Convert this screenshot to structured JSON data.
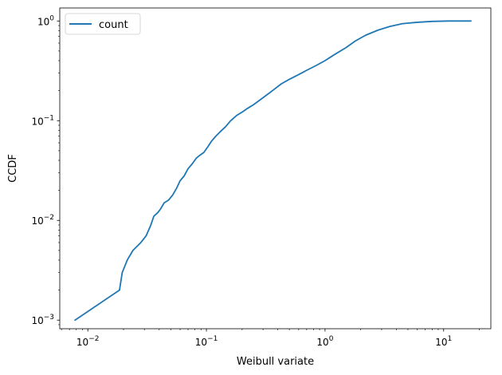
{
  "chart_data": {
    "type": "line",
    "xlabel": "Weibull variate",
    "ylabel": "CCDF",
    "xscale": "log",
    "yscale": "log",
    "xlim": [
      0.0058,
      25
    ],
    "ylim": [
      0.00082,
      1.35
    ],
    "grid": false,
    "legend_position": "top-left",
    "x_ticks": [
      {
        "value": 0.01,
        "base": "10",
        "exp": "−2"
      },
      {
        "value": 0.1,
        "base": "10",
        "exp": "−1"
      },
      {
        "value": 1,
        "base": "10",
        "exp": "0"
      },
      {
        "value": 10,
        "base": "10",
        "exp": "1"
      }
    ],
    "y_ticks": [
      {
        "value": 0.001,
        "base": "10",
        "exp": "−3"
      },
      {
        "value": 0.01,
        "base": "10",
        "exp": "−2"
      },
      {
        "value": 0.1,
        "base": "10",
        "exp": "−1"
      },
      {
        "value": 1,
        "base": "10",
        "exp": "0"
      }
    ],
    "series": [
      {
        "name": "count",
        "color": "#1f77b4",
        "x": [
          0.0078,
          0.0185,
          0.0195,
          0.0215,
          0.024,
          0.028,
          0.031,
          0.034,
          0.036,
          0.039,
          0.041,
          0.044,
          0.048,
          0.052,
          0.056,
          0.06,
          0.065,
          0.07,
          0.076,
          0.082,
          0.088,
          0.095,
          0.103,
          0.11,
          0.12,
          0.13,
          0.145,
          0.16,
          0.18,
          0.2,
          0.22,
          0.25,
          0.28,
          0.32,
          0.37,
          0.43,
          0.5,
          0.6,
          0.7,
          0.85,
          1.0,
          1.2,
          1.5,
          1.8,
          2.2,
          2.8,
          3.5,
          4.5,
          6.0,
          8.0,
          11.0,
          17.0
        ],
        "y": [
          0.001,
          0.002,
          0.003,
          0.004,
          0.005,
          0.006,
          0.007,
          0.009,
          0.011,
          0.012,
          0.013,
          0.015,
          0.016,
          0.018,
          0.021,
          0.025,
          0.028,
          0.033,
          0.037,
          0.042,
          0.045,
          0.048,
          0.055,
          0.062,
          0.07,
          0.077,
          0.087,
          0.1,
          0.113,
          0.122,
          0.132,
          0.145,
          0.16,
          0.18,
          0.205,
          0.235,
          0.26,
          0.29,
          0.32,
          0.36,
          0.4,
          0.46,
          0.54,
          0.63,
          0.72,
          0.81,
          0.88,
          0.94,
          0.97,
          0.99,
          1.0,
          1.0
        ]
      }
    ]
  }
}
